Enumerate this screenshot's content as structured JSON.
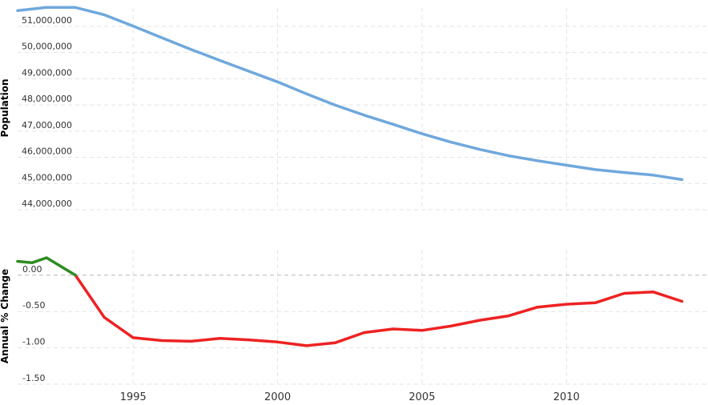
{
  "chart_data": [
    {
      "type": "line",
      "ylabel": "Population",
      "ylim": [
        44000000,
        51700000
      ],
      "yticks": [
        {
          "value": 44000000,
          "label": "44,000,000"
        },
        {
          "value": 45000000,
          "label": "45,000,000"
        },
        {
          "value": 46000000,
          "label": "46,000,000"
        },
        {
          "value": 47000000,
          "label": "47,000,000"
        },
        {
          "value": 48000000,
          "label": "48,000,000"
        },
        {
          "value": 49000000,
          "label": "49,000,000"
        },
        {
          "value": 50000000,
          "label": "50,000,000"
        },
        {
          "value": 51000000,
          "label": "51,000,000"
        }
      ],
      "grid": true,
      "color": "#6fa8dc",
      "x": [
        1991,
        1992,
        1993,
        1994,
        1995,
        1996,
        1997,
        1998,
        1999,
        2000,
        2001,
        2002,
        2003,
        2004,
        2005,
        2006,
        2007,
        2008,
        2009,
        2010,
        2011,
        2012,
        2013,
        2014
      ],
      "values": [
        51600000,
        51720000,
        51720000,
        51440000,
        51010000,
        50560000,
        50120000,
        49700000,
        49290000,
        48880000,
        48420000,
        47990000,
        47610000,
        47260000,
        46900000,
        46580000,
        46300000,
        46060000,
        45870000,
        45700000,
        45530000,
        45420000,
        45320000,
        45150000
      ]
    },
    {
      "type": "line",
      "ylabel": "Annual % Change",
      "ylim": [
        -1.5,
        0.35
      ],
      "yticks": [
        {
          "value": 0,
          "label": "0.00"
        },
        {
          "value": -0.5,
          "label": "-0.50"
        },
        {
          "value": -1.0,
          "label": "-1.00"
        },
        {
          "value": -1.5,
          "label": "-1.50"
        }
      ],
      "grid": true,
      "positive_color": "#2e8b22",
      "negative_color": "#ee2222",
      "x": [
        1991,
        1991.5,
        1992,
        1993,
        1994,
        1995,
        1996,
        1997,
        1998,
        1999,
        2000,
        2001,
        2002,
        2003,
        2004,
        2005,
        2006,
        2007,
        2008,
        2009,
        2010,
        2011,
        2012,
        2013,
        2014
      ],
      "values": [
        0.19,
        0.17,
        0.24,
        0.0,
        -0.58,
        -0.86,
        -0.9,
        -0.91,
        -0.87,
        -0.89,
        -0.92,
        -0.97,
        -0.93,
        -0.79,
        -0.74,
        -0.76,
        -0.7,
        -0.62,
        -0.56,
        -0.44,
        -0.4,
        -0.38,
        -0.25,
        -0.23,
        -0.36
      ]
    }
  ],
  "x_axis": {
    "xlim": [
      1991,
      2014.9
    ],
    "ticks": [
      {
        "value": 1995,
        "label": "1995"
      },
      {
        "value": 2000,
        "label": "2000"
      },
      {
        "value": 2005,
        "label": "2005"
      },
      {
        "value": 2010,
        "label": "2010"
      }
    ]
  }
}
